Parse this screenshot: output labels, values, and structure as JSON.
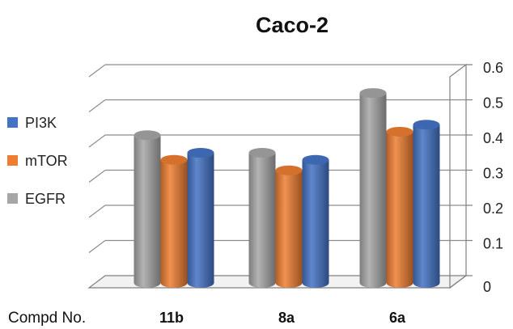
{
  "chart_data": {
    "type": "bar",
    "title": "Caco-2",
    "xlabel": "Compd No.",
    "ylabel": "",
    "categories": [
      "11b",
      "8a",
      "6a"
    ],
    "series": [
      {
        "name": "EGFR",
        "values": [
          0.42,
          0.37,
          0.54
        ],
        "color": "#a6a6a6"
      },
      {
        "name": "mTOR",
        "values": [
          0.35,
          0.32,
          0.43
        ],
        "color": "#ed7d31"
      },
      {
        "name": "PI3K",
        "values": [
          0.37,
          0.35,
          0.45
        ],
        "color": "#4472c4"
      }
    ],
    "legend_order": [
      "PI3K",
      "mTOR",
      "EGFR"
    ],
    "legend_position": "left",
    "ylim": [
      0,
      0.6
    ],
    "yticks": [
      "0",
      "0.1",
      "0.2",
      "0.3",
      "0.4",
      "0.5",
      "0.6"
    ],
    "grid": true,
    "style": "3d-cylinder"
  }
}
